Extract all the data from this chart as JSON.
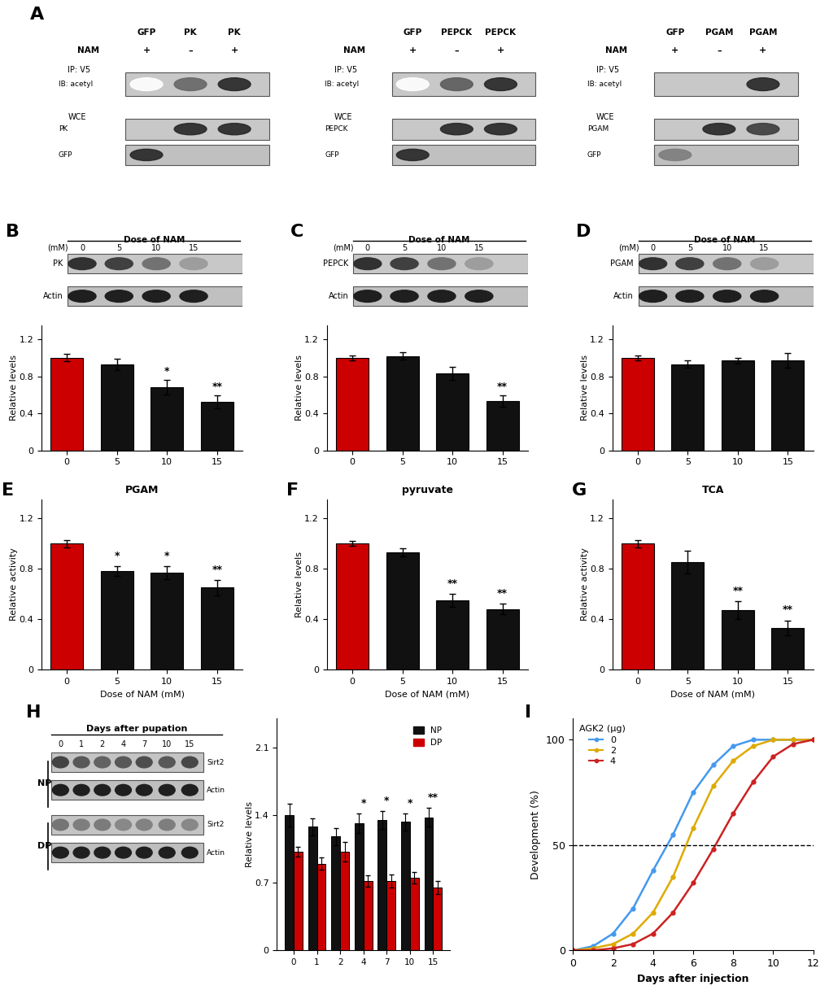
{
  "panel_B": {
    "categories": [
      "0",
      "5",
      "10",
      "15"
    ],
    "values": [
      1.0,
      0.93,
      0.68,
      0.52
    ],
    "errors": [
      0.04,
      0.06,
      0.08,
      0.07
    ],
    "colors": [
      "#cc0000",
      "#111111",
      "#111111",
      "#111111"
    ],
    "ylabel": "Relative levels",
    "annotations": [
      "",
      "",
      "*",
      "**"
    ],
    "ylim": [
      0,
      1.35
    ],
    "yticks": [
      0,
      0.4,
      0.8,
      1.2
    ],
    "blot_label1": "PK",
    "blot_label2": "Actin"
  },
  "panel_C": {
    "categories": [
      "0",
      "5",
      "10",
      "15"
    ],
    "values": [
      1.0,
      1.02,
      0.83,
      0.53
    ],
    "errors": [
      0.03,
      0.04,
      0.07,
      0.06
    ],
    "colors": [
      "#cc0000",
      "#111111",
      "#111111",
      "#111111"
    ],
    "ylabel": "Relative levels",
    "annotations": [
      "",
      "",
      "",
      "**"
    ],
    "ylim": [
      0,
      1.35
    ],
    "yticks": [
      0,
      0.4,
      0.8,
      1.2
    ],
    "blot_label1": "PEPCK",
    "blot_label2": "Actin"
  },
  "panel_D": {
    "categories": [
      "0",
      "5",
      "10",
      "15"
    ],
    "values": [
      1.0,
      0.93,
      0.97,
      0.97
    ],
    "errors": [
      0.03,
      0.04,
      0.03,
      0.08
    ],
    "colors": [
      "#cc0000",
      "#111111",
      "#111111",
      "#111111"
    ],
    "ylabel": "Relative levels",
    "annotations": [
      "",
      "",
      "",
      ""
    ],
    "ylim": [
      0,
      1.35
    ],
    "yticks": [
      0,
      0.4,
      0.8,
      1.2
    ],
    "blot_label1": "PGAM",
    "blot_label2": "Actin"
  },
  "panel_E": {
    "categories": [
      "0",
      "5",
      "10",
      "15"
    ],
    "values": [
      1.0,
      0.78,
      0.77,
      0.65
    ],
    "errors": [
      0.03,
      0.04,
      0.05,
      0.06
    ],
    "colors": [
      "#cc0000",
      "#111111",
      "#111111",
      "#111111"
    ],
    "ylabel": "Relative activity",
    "title": "PGAM",
    "annotations": [
      "",
      "*",
      "*",
      "**"
    ],
    "xlabel": "Dose of NAM (mM)",
    "ylim": [
      0,
      1.35
    ],
    "yticks": [
      0,
      0.4,
      0.8,
      1.2
    ]
  },
  "panel_F": {
    "categories": [
      "0",
      "5",
      "10",
      "15"
    ],
    "values": [
      1.0,
      0.93,
      0.55,
      0.48
    ],
    "errors": [
      0.02,
      0.03,
      0.05,
      0.04
    ],
    "colors": [
      "#cc0000",
      "#111111",
      "#111111",
      "#111111"
    ],
    "ylabel": "Relative levels",
    "title": "pyruvate",
    "annotations": [
      "",
      "",
      "**",
      "**"
    ],
    "xlabel": "Dose of NAM (mM)",
    "ylim": [
      0,
      1.35
    ],
    "yticks": [
      0,
      0.4,
      0.8,
      1.2
    ]
  },
  "panel_G": {
    "categories": [
      "0",
      "5",
      "10",
      "15"
    ],
    "values": [
      1.0,
      0.85,
      0.47,
      0.33
    ],
    "errors": [
      0.03,
      0.09,
      0.07,
      0.06
    ],
    "colors": [
      "#cc0000",
      "#111111",
      "#111111",
      "#111111"
    ],
    "ylabel": "Relative activity",
    "title": "TCA",
    "annotations": [
      "",
      "",
      "**",
      "**"
    ],
    "xlabel": "Dose of NAM (mM)",
    "ylim": [
      0,
      1.35
    ],
    "yticks": [
      0,
      0.4,
      0.8,
      1.2
    ]
  },
  "panel_H_bar": {
    "days": [
      0,
      1,
      2,
      4,
      7,
      10,
      15
    ],
    "NP_values": [
      1.4,
      1.28,
      1.18,
      1.32,
      1.35,
      1.33,
      1.38
    ],
    "NP_errors": [
      0.12,
      0.09,
      0.09,
      0.1,
      0.09,
      0.09,
      0.1
    ],
    "DP_values": [
      1.02,
      0.9,
      1.02,
      0.72,
      0.72,
      0.75,
      0.65
    ],
    "DP_errors": [
      0.05,
      0.06,
      0.1,
      0.06,
      0.07,
      0.06,
      0.07
    ],
    "NP_color": "#111111",
    "DP_color": "#cc0000",
    "ylabel": "Relative levels",
    "annotations": [
      "",
      "",
      "",
      "*",
      "*",
      "*",
      "**"
    ],
    "ylim": [
      0,
      2.4
    ],
    "yticks": [
      0,
      0.7,
      1.4,
      2.1
    ]
  },
  "panel_I": {
    "days": [
      0,
      1,
      2,
      3,
      4,
      5,
      6,
      7,
      8,
      9,
      10,
      11,
      12
    ],
    "ctrl_values": [
      0,
      2,
      8,
      20,
      38,
      55,
      75,
      88,
      97,
      100,
      100,
      100,
      100
    ],
    "agk2_2_values": [
      0,
      1,
      3,
      8,
      18,
      35,
      58,
      78,
      90,
      97,
      100,
      100,
      100
    ],
    "agk2_4_values": [
      0,
      0,
      1,
      3,
      8,
      18,
      32,
      48,
      65,
      80,
      92,
      98,
      100
    ],
    "ctrl_color": "#4499ee",
    "agk2_2_color": "#ddaa00",
    "agk2_4_color": "#cc2222",
    "ylabel": "Development (%)",
    "xlabel": "Days after injection",
    "title": "AGK2 (μg)",
    "legend_labels": [
      "0",
      "2",
      "4"
    ],
    "xlim": [
      0,
      12
    ],
    "ylim": [
      0,
      110
    ],
    "yticks": [
      0,
      50,
      100
    ]
  },
  "panel_A": {
    "panels": [
      {
        "columns": [
          "GFP",
          "PK",
          "PK"
        ],
        "NAM": [
          "+",
          "–",
          "+"
        ],
        "protein_label": "PK",
        "acetyl_bands": [
          0,
          1,
          2
        ],
        "acetyl_intensities": [
          0,
          0.7,
          1.0
        ],
        "protein_bands": [
          1,
          2
        ],
        "protein_intensities": [
          1.0,
          1.0
        ],
        "gfp_bands": [
          0
        ],
        "gfp_intensities": [
          1.0
        ]
      },
      {
        "columns": [
          "GFP",
          "PEPCK",
          "PEPCK"
        ],
        "NAM": [
          "+",
          "–",
          "+"
        ],
        "protein_label": "PEPCK",
        "acetyl_bands": [
          0,
          1,
          2
        ],
        "acetyl_intensities": [
          0,
          0.75,
          1.0
        ],
        "protein_bands": [
          1,
          2
        ],
        "protein_intensities": [
          1.0,
          1.0
        ],
        "gfp_bands": [
          0
        ],
        "gfp_intensities": [
          1.0
        ]
      },
      {
        "columns": [
          "GFP",
          "PGAM",
          "PGAM"
        ],
        "NAM": [
          "+",
          "–",
          "+"
        ],
        "protein_label": "PGAM",
        "acetyl_bands": [
          2
        ],
        "acetyl_intensities": [
          1.0
        ],
        "protein_bands": [
          1,
          2
        ],
        "protein_intensities": [
          1.0,
          0.9
        ],
        "gfp_bands": [
          0
        ],
        "gfp_intensities": [
          0.6
        ]
      }
    ]
  }
}
